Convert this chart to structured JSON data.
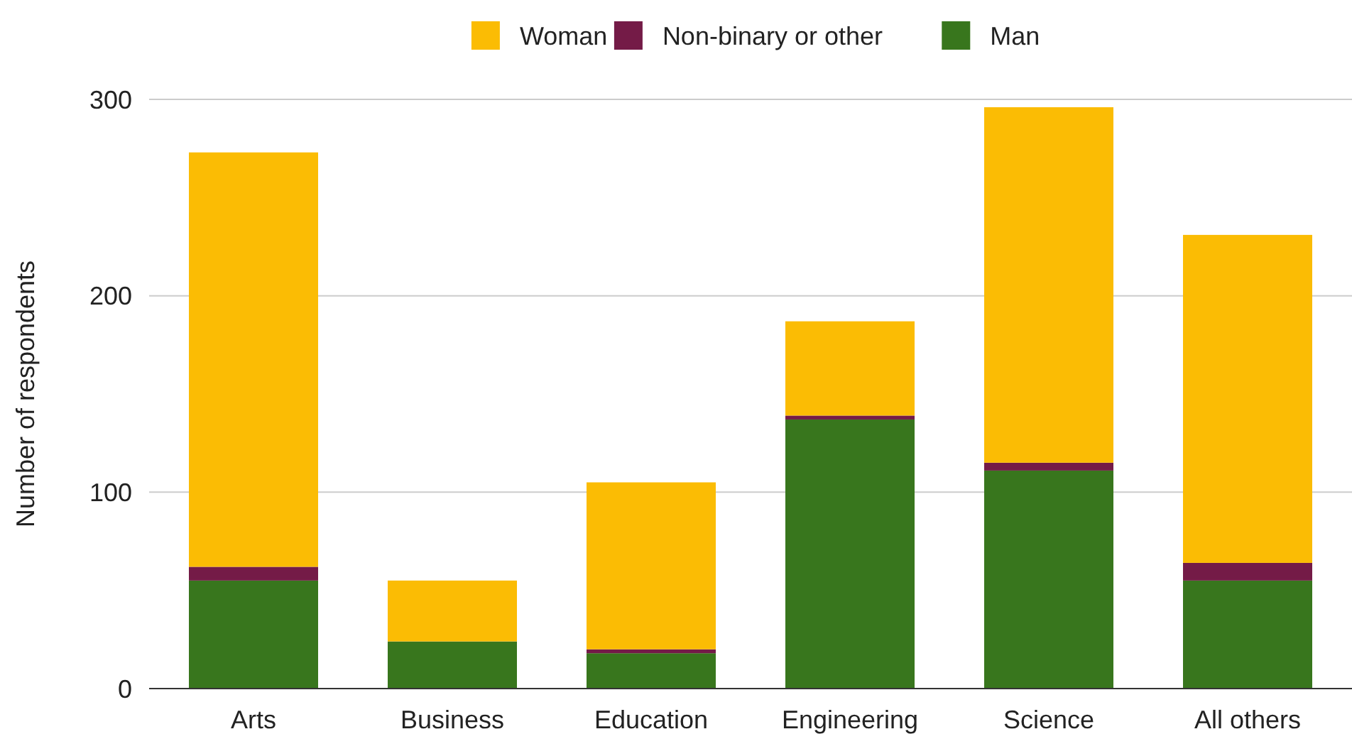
{
  "chart_data": {
    "type": "bar",
    "stacked": true,
    "ylabel": "Number of respondents",
    "categories": [
      "Arts",
      "Business",
      "Education",
      "Engineering",
      "Science",
      "All others"
    ],
    "series": [
      {
        "name": "Man",
        "color": "#38761d",
        "values": [
          55,
          24,
          18,
          137,
          111,
          55
        ]
      },
      {
        "name": "Non-binary or other",
        "color": "#741b47",
        "values": [
          7,
          0,
          2,
          2,
          4,
          9
        ]
      },
      {
        "name": "Woman",
        "color": "#fbbc04",
        "values": [
          211,
          31,
          85,
          48,
          181,
          167
        ]
      }
    ],
    "ylim": [
      0,
      300
    ],
    "yticks": [
      0,
      100,
      200,
      300
    ],
    "grid": "y",
    "legend": "top"
  }
}
